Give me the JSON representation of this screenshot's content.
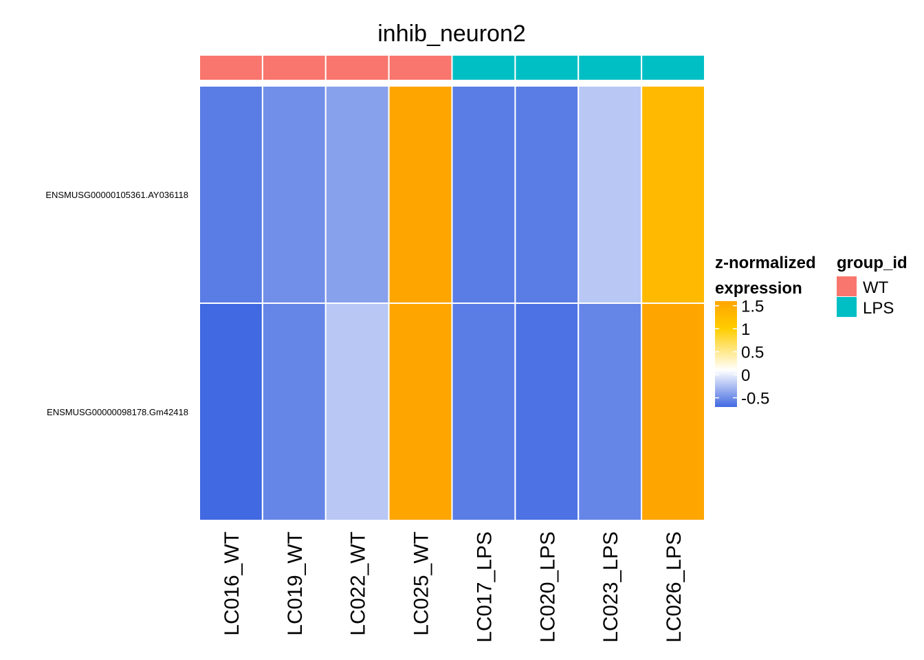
{
  "chart_data": {
    "type": "heatmap",
    "title": "inhib_neuron2",
    "columns": [
      "LC016_WT",
      "LC019_WT",
      "LC022_WT",
      "LC025_WT",
      "LC017_LPS",
      "LC020_LPS",
      "LC023_LPS",
      "LC026_LPS"
    ],
    "column_groups": [
      "WT",
      "WT",
      "WT",
      "WT",
      "LPS",
      "LPS",
      "LPS",
      "LPS"
    ],
    "rows": [
      "ENSMUSG00000105361.AY036118",
      "ENSMUSG00000098178.Gm42418"
    ],
    "values": [
      [
        -0.6,
        -0.5,
        -0.4,
        1.6,
        -0.6,
        -0.6,
        -0.2,
        1.3
      ],
      [
        -0.7,
        -0.55,
        -0.2,
        1.6,
        -0.6,
        -0.65,
        -0.55,
        1.6
      ]
    ],
    "color_scale": {
      "title_lines": [
        "z-normalized",
        "expression"
      ],
      "ticks": [
        1.5,
        1,
        0.5,
        0,
        -0.5
      ],
      "tick_labels": [
        "1.5",
        "1",
        "0.5",
        "0",
        "-0.5"
      ],
      "range": [
        -0.7,
        1.6
      ],
      "stops": [
        {
          "value": -0.7,
          "color": "#4169E1"
        },
        {
          "value": 0.1,
          "color": "#FFFFFF"
        },
        {
          "value": 1.0,
          "color": "#FFCD00"
        },
        {
          "value": 1.6,
          "color": "#FFA500"
        }
      ]
    },
    "group_legend": {
      "title": "group_id",
      "items": [
        {
          "label": "WT",
          "color": "#F8766D"
        },
        {
          "label": "LPS",
          "color": "#00BFC4"
        }
      ]
    }
  }
}
